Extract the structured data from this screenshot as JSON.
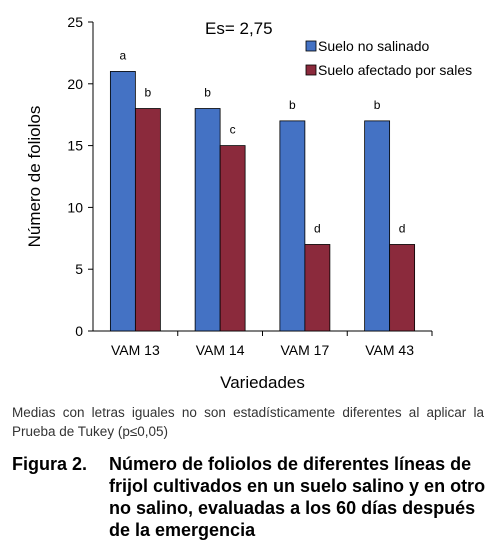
{
  "chart_data": {
    "type": "bar",
    "title": "",
    "annotation": "Es= 2,75",
    "xlabel": "Variedades",
    "ylabel": "Número de foliolos",
    "ylim": [
      0,
      25
    ],
    "yticks": [
      "0",
      "5",
      "10",
      "15",
      "20",
      "25"
    ],
    "categories": [
      "VAM 13",
      "VAM 14",
      "VAM 17",
      "VAM 43"
    ],
    "series": [
      {
        "name": "Suelo no salinado",
        "color": "#4472c4",
        "values": [
          21,
          18,
          17,
          17
        ],
        "letters": [
          "a",
          "b",
          "b",
          "b"
        ]
      },
      {
        "name": "Suelo afectado por sales",
        "color": "#8b2a3c",
        "values": [
          18,
          15,
          7,
          7
        ],
        "letters": [
          "b",
          "c",
          "d",
          "d"
        ]
      }
    ],
    "legend": "top-right",
    "grid": false
  },
  "footnote": "Medias con letras iguales no son estadísticamente diferentes al aplicar la Prueba de Tukey (p≤0,05)",
  "caption": {
    "label": "Figura 2.",
    "text": "Número de foliolos de diferentes líneas de frijol cultivados en un suelo salino y en otro no salino, evaluadas a los 60 días después de la emergencia"
  }
}
